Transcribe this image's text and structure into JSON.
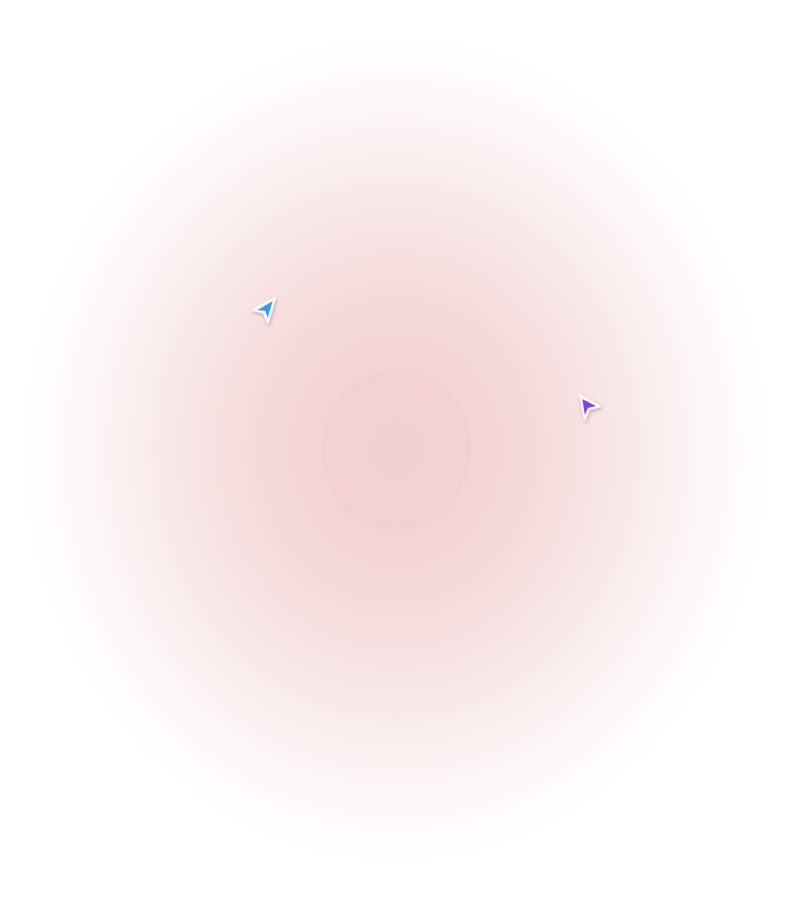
{
  "background": {
    "center_color": "#f3cfd0",
    "edge_color": "#ffffff"
  },
  "cursors": [
    {
      "name": "blue-cursor",
      "color": "#3a9ad9",
      "direction": "up-right"
    },
    {
      "name": "purple-cursor",
      "color": "#7a45d8",
      "direction": "up-left"
    }
  ]
}
